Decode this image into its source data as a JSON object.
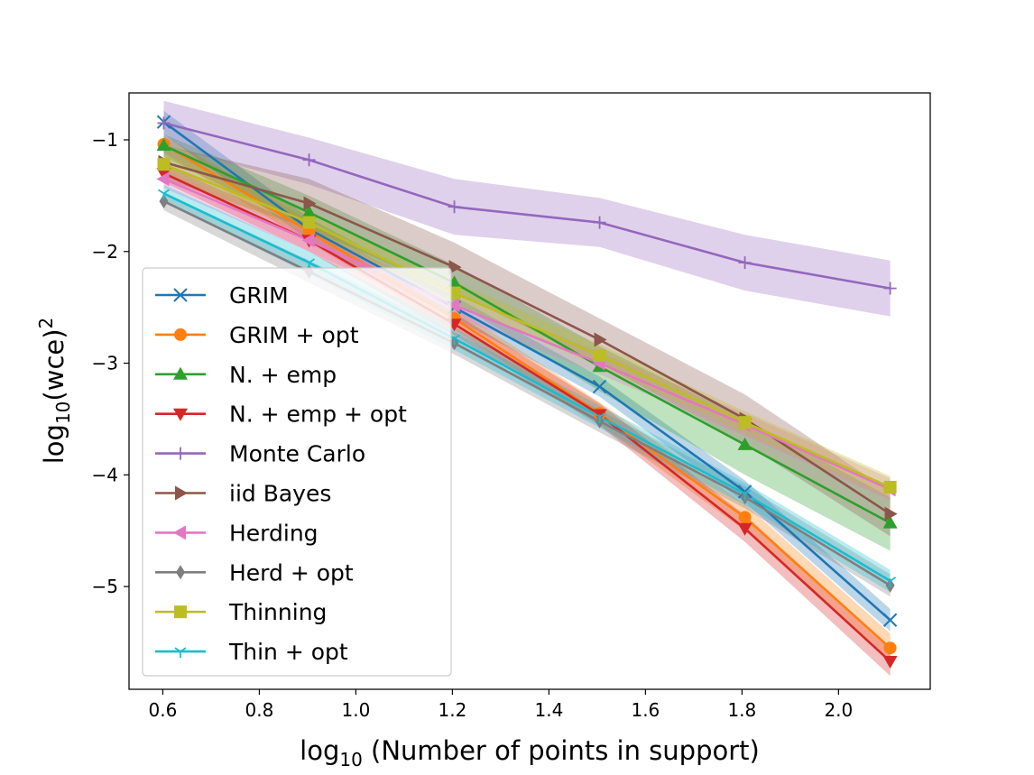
{
  "chart_data": {
    "type": "line",
    "title": "",
    "xlabel": {
      "prefix": "log",
      "sub": "10",
      "suffix": " (Number of points in support)"
    },
    "ylabel": {
      "prefix": "log",
      "sub": "10",
      "suffix": "(wce)",
      "sup": "2"
    },
    "xlim": [
      0.53,
      2.19
    ],
    "ylim": [
      -5.92,
      -0.58
    ],
    "xticks": [
      0.6,
      0.8,
      1.0,
      1.2,
      1.4,
      1.6,
      1.8,
      2.0
    ],
    "xtick_labels": [
      "0.6",
      "0.8",
      "1.0",
      "1.2",
      "1.4",
      "1.6",
      "1.8",
      "2.0"
    ],
    "yticks": [
      -1,
      -2,
      -3,
      -4,
      -5
    ],
    "ytick_labels": [
      "−1",
      "−2",
      "−3",
      "−4",
      "−5"
    ],
    "legend_position": "lower-left",
    "x": [
      0.602,
      0.903,
      1.204,
      1.505,
      1.806,
      2.107
    ],
    "series": [
      {
        "name": "GRIM",
        "color": "#1f77b4",
        "marker": "x",
        "values": [
          -0.84,
          -1.8,
          -2.5,
          -3.21,
          -4.15,
          -5.3
        ],
        "band_lo": [
          -0.95,
          -1.9,
          -2.6,
          -3.3,
          -4.25,
          -5.4
        ],
        "band_hi": [
          -0.74,
          -1.7,
          -2.4,
          -3.12,
          -4.05,
          -5.2
        ]
      },
      {
        "name": "GRIM + opt",
        "color": "#ff7f0e",
        "marker": "o",
        "values": [
          -1.04,
          -1.82,
          -2.6,
          -3.45,
          -4.38,
          -5.55
        ],
        "band_lo": [
          -1.12,
          -1.92,
          -2.7,
          -3.55,
          -4.5,
          -5.68
        ],
        "band_hi": [
          -0.96,
          -1.72,
          -2.5,
          -3.35,
          -4.26,
          -5.42
        ]
      },
      {
        "name": "N. + emp",
        "color": "#2ca02c",
        "marker": "^",
        "values": [
          -1.05,
          -1.65,
          -2.28,
          -3.03,
          -3.73,
          -4.43
        ],
        "band_lo": [
          -1.15,
          -1.8,
          -2.45,
          -3.25,
          -4.0,
          -4.68
        ],
        "band_hi": [
          -0.95,
          -1.5,
          -2.12,
          -2.85,
          -3.5,
          -4.2
        ]
      },
      {
        "name": "N. + emp + opt",
        "color": "#d62728",
        "marker": "v",
        "values": [
          -1.3,
          -1.9,
          -2.65,
          -3.46,
          -4.48,
          -5.67
        ],
        "band_lo": [
          -1.38,
          -2.0,
          -2.75,
          -3.56,
          -4.6,
          -5.8
        ],
        "band_hi": [
          -1.22,
          -1.8,
          -2.55,
          -3.36,
          -4.36,
          -5.54
        ]
      },
      {
        "name": "Monte Carlo",
        "color": "#9467bd",
        "marker": "+",
        "values": [
          -0.85,
          -1.18,
          -1.6,
          -1.74,
          -2.1,
          -2.33
        ],
        "band_lo": [
          -1.05,
          -1.4,
          -1.85,
          -1.96,
          -2.35,
          -2.58
        ],
        "band_hi": [
          -0.65,
          -0.98,
          -1.35,
          -1.52,
          -1.85,
          -2.08
        ]
      },
      {
        "name": "iid Bayes",
        "color": "#8c564b",
        "marker": ">",
        "values": [
          -1.2,
          -1.57,
          -2.14,
          -2.79,
          -3.5,
          -4.35
        ],
        "band_lo": [
          -1.35,
          -1.8,
          -2.36,
          -3.0,
          -3.72,
          -4.55
        ],
        "band_hi": [
          -1.05,
          -1.35,
          -1.92,
          -2.6,
          -3.28,
          -4.15
        ]
      },
      {
        "name": "Herding",
        "color": "#e377c2",
        "marker": "<",
        "values": [
          -1.35,
          -1.9,
          -2.48,
          -3.0,
          -3.55,
          -4.13
        ],
        "band_lo": [
          -1.43,
          -2.0,
          -2.58,
          -3.1,
          -3.65,
          -4.23
        ],
        "band_hi": [
          -1.27,
          -1.8,
          -2.38,
          -2.9,
          -3.45,
          -4.03
        ]
      },
      {
        "name": "Herd + opt",
        "color": "#7f7f7f",
        "marker": "d",
        "values": [
          -1.55,
          -2.18,
          -2.82,
          -3.52,
          -4.2,
          -4.99
        ],
        "band_lo": [
          -1.63,
          -2.28,
          -2.92,
          -3.62,
          -4.3,
          -5.09
        ],
        "band_hi": [
          -1.47,
          -2.08,
          -2.72,
          -3.42,
          -4.1,
          -4.89
        ]
      },
      {
        "name": "Thinning",
        "color": "#bcbd22",
        "marker": "s",
        "values": [
          -1.22,
          -1.74,
          -2.37,
          -2.93,
          -3.53,
          -4.11
        ],
        "band_lo": [
          -1.32,
          -1.84,
          -2.47,
          -3.03,
          -3.63,
          -4.21
        ],
        "band_hi": [
          -1.12,
          -1.64,
          -2.27,
          -2.83,
          -3.43,
          -4.01
        ]
      },
      {
        "name": "Thin + opt",
        "color": "#17becf",
        "marker": "1",
        "values": [
          -1.48,
          -2.1,
          -2.78,
          -3.48,
          -4.17,
          -4.95
        ],
        "band_lo": [
          -1.56,
          -2.2,
          -2.88,
          -3.58,
          -4.27,
          -5.05
        ],
        "band_hi": [
          -1.4,
          -2.0,
          -2.68,
          -3.38,
          -4.07,
          -4.85
        ]
      }
    ]
  }
}
